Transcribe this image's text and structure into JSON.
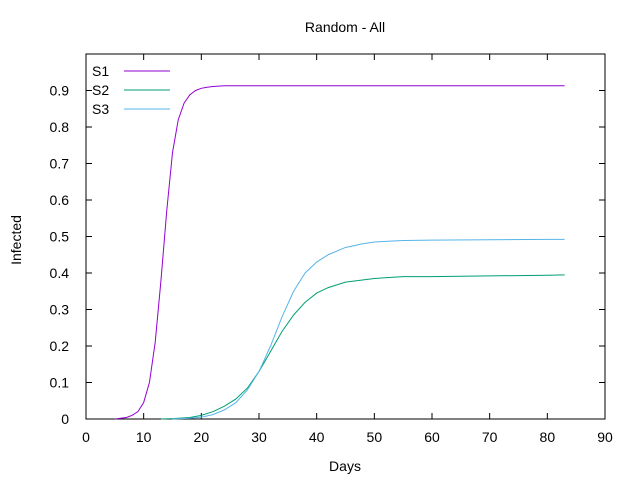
{
  "chart_data": {
    "type": "line",
    "title": "Random - All",
    "xlabel": "Days",
    "ylabel": "Infected",
    "xlim": [
      0,
      90
    ],
    "ylim": [
      0,
      1
    ],
    "xticks": [
      0,
      10,
      20,
      30,
      40,
      50,
      60,
      70,
      80,
      90
    ],
    "yticks": [
      0,
      0.1,
      0.2,
      0.3,
      0.4,
      0.5,
      0.6,
      0.7,
      0.8,
      0.9
    ],
    "grid": false,
    "legend_position": "top-left",
    "series": [
      {
        "name": "S1",
        "color": "#9400d3",
        "x": [
          5,
          6,
          7,
          8,
          9,
          10,
          11,
          12,
          13,
          14,
          15,
          16,
          17,
          18,
          19,
          20,
          21,
          22,
          23,
          24,
          25,
          30,
          40,
          50,
          60,
          70,
          80,
          83
        ],
        "y": [
          0.0,
          0.002,
          0.004,
          0.01,
          0.02,
          0.045,
          0.1,
          0.21,
          0.38,
          0.57,
          0.73,
          0.82,
          0.865,
          0.888,
          0.9,
          0.906,
          0.909,
          0.911,
          0.912,
          0.913,
          0.913,
          0.913,
          0.913,
          0.913,
          0.913,
          0.913,
          0.913,
          0.913
        ]
      },
      {
        "name": "S2",
        "color": "#009e73",
        "x": [
          13,
          15,
          18,
          20,
          22,
          24,
          26,
          28,
          30,
          32,
          34,
          36,
          38,
          40,
          42,
          45,
          50,
          55,
          60,
          70,
          80,
          83
        ],
        "y": [
          0.0,
          0.001,
          0.004,
          0.01,
          0.02,
          0.035,
          0.055,
          0.085,
          0.13,
          0.185,
          0.24,
          0.285,
          0.32,
          0.345,
          0.36,
          0.375,
          0.385,
          0.39,
          0.39,
          0.392,
          0.394,
          0.395
        ]
      },
      {
        "name": "S3",
        "color": "#56b4e9",
        "x": [
          15,
          18,
          20,
          22,
          24,
          26,
          28,
          30,
          32,
          34,
          36,
          38,
          40,
          42,
          45,
          48,
          50,
          55,
          60,
          70,
          80,
          83
        ],
        "y": [
          0.0,
          0.002,
          0.005,
          0.012,
          0.025,
          0.045,
          0.08,
          0.13,
          0.2,
          0.28,
          0.35,
          0.4,
          0.43,
          0.45,
          0.47,
          0.48,
          0.485,
          0.489,
          0.49,
          0.491,
          0.492,
          0.492
        ]
      }
    ]
  }
}
